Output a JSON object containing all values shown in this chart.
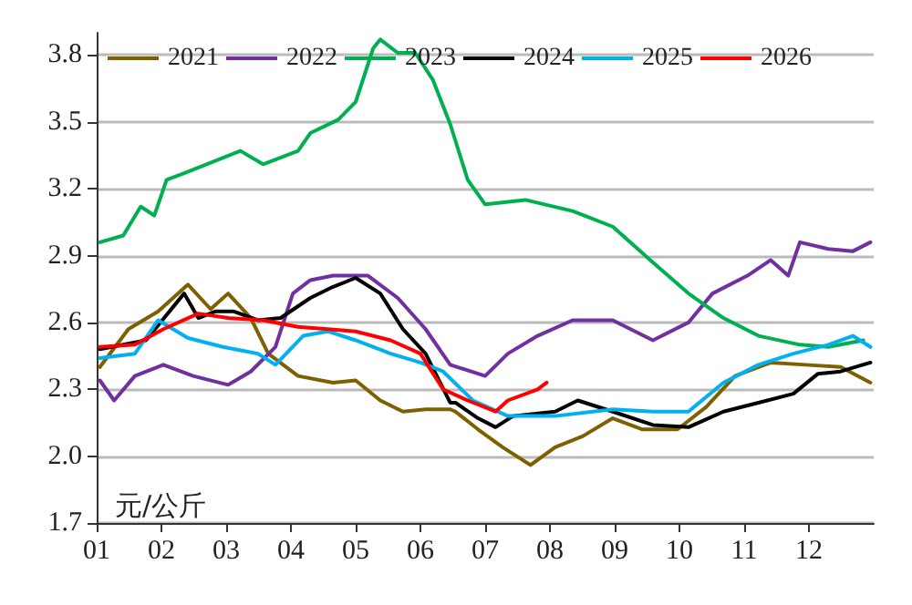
{
  "chart_data": {
    "type": "line",
    "ylabel": "元/公斤",
    "xlim": [
      1,
      13
    ],
    "xticks": [
      {
        "value": 1,
        "label": "01"
      },
      {
        "value": 2,
        "label": "02"
      },
      {
        "value": 3,
        "label": "03"
      },
      {
        "value": 4,
        "label": "04"
      },
      {
        "value": 5,
        "label": "05"
      },
      {
        "value": 6,
        "label": "06"
      },
      {
        "value": 7,
        "label": "07"
      },
      {
        "value": 8,
        "label": "08"
      },
      {
        "value": 9,
        "label": "09"
      },
      {
        "value": 10,
        "label": "10"
      },
      {
        "value": 11,
        "label": "11"
      },
      {
        "value": 12,
        "label": "12"
      }
    ],
    "ylim": [
      1.7,
      3.9
    ],
    "yticks": [
      {
        "value": 1.7,
        "label": "1.7"
      },
      {
        "value": 2.0,
        "label": "2.0"
      },
      {
        "value": 2.3,
        "label": "2.3"
      },
      {
        "value": 2.6,
        "label": "2.6"
      },
      {
        "value": 2.9,
        "label": "2.9"
      },
      {
        "value": 3.2,
        "label": "3.2"
      },
      {
        "value": 3.5,
        "label": "3.5"
      },
      {
        "value": 3.8,
        "label": "3.8"
      }
    ],
    "grid": "y",
    "legend": "top",
    "marker": "none",
    "line_style": "solid",
    "series": [
      {
        "name": "2021",
        "color": "#7f6000",
        "x": [
          1.05,
          1.49,
          1.95,
          2.41,
          2.76,
          3.03,
          3.38,
          3.65,
          4.11,
          4.65,
          5.0,
          5.38,
          5.73,
          6.08,
          6.46,
          6.54,
          6.89,
          7.27,
          7.7,
          8.08,
          8.51,
          8.97,
          9.43,
          9.97,
          10.41,
          10.86,
          11.41,
          11.95,
          12.49,
          12.95
        ],
        "values": [
          2.4,
          2.57,
          2.65,
          2.77,
          2.66,
          2.73,
          2.62,
          2.46,
          2.36,
          2.33,
          2.34,
          2.25,
          2.2,
          2.21,
          2.21,
          2.2,
          2.12,
          2.04,
          1.96,
          2.04,
          2.09,
          2.17,
          2.12,
          2.12,
          2.22,
          2.36,
          2.42,
          2.41,
          2.4,
          2.33
        ]
      },
      {
        "name": "2022",
        "color": "#7030a0",
        "x": [
          1.05,
          1.27,
          1.59,
          2.03,
          2.49,
          3.03,
          3.38,
          3.76,
          4.03,
          4.3,
          4.65,
          5.19,
          5.65,
          6.08,
          6.46,
          7.0,
          7.35,
          7.81,
          8.35,
          8.97,
          9.59,
          10.14,
          10.51,
          11.05,
          11.41,
          11.68,
          11.86,
          12.3,
          12.68,
          12.95
        ],
        "values": [
          2.34,
          2.25,
          2.36,
          2.41,
          2.36,
          2.32,
          2.38,
          2.49,
          2.73,
          2.79,
          2.81,
          2.81,
          2.71,
          2.57,
          2.41,
          2.36,
          2.46,
          2.54,
          2.61,
          2.61,
          2.52,
          2.6,
          2.73,
          2.81,
          2.88,
          2.81,
          2.96,
          2.93,
          2.92,
          2.96
        ]
      },
      {
        "name": "2023",
        "color": "#00b050",
        "x": [
          1.05,
          1.41,
          1.68,
          1.89,
          2.08,
          2.35,
          3.22,
          3.57,
          4.11,
          4.3,
          4.73,
          5.0,
          5.27,
          5.38,
          5.65,
          5.92,
          6.19,
          6.46,
          6.73,
          7.0,
          7.62,
          8.35,
          8.97,
          9.59,
          10.14,
          10.68,
          11.22,
          11.86,
          12.3,
          12.84
        ],
        "values": [
          2.96,
          2.99,
          3.12,
          3.08,
          3.24,
          3.27,
          3.37,
          3.31,
          3.37,
          3.45,
          3.51,
          3.59,
          3.83,
          3.87,
          3.81,
          3.81,
          3.69,
          3.49,
          3.24,
          3.13,
          3.15,
          3.1,
          3.03,
          2.87,
          2.73,
          2.62,
          2.54,
          2.5,
          2.49,
          2.52
        ]
      },
      {
        "name": "2024",
        "color": "#000000",
        "x": [
          1.05,
          1.76,
          2.35,
          2.57,
          2.84,
          3.11,
          3.49,
          3.84,
          4.3,
          4.65,
          5.0,
          5.38,
          5.73,
          6.08,
          6.46,
          6.54,
          6.89,
          7.16,
          7.43,
          8.08,
          8.43,
          8.97,
          9.59,
          10.14,
          10.68,
          11.22,
          11.76,
          12.14,
          12.49,
          12.95
        ],
        "values": [
          2.48,
          2.52,
          2.73,
          2.62,
          2.65,
          2.65,
          2.61,
          2.62,
          2.71,
          2.76,
          2.8,
          2.73,
          2.57,
          2.46,
          2.24,
          2.24,
          2.17,
          2.13,
          2.18,
          2.2,
          2.25,
          2.2,
          2.14,
          2.13,
          2.2,
          2.24,
          2.28,
          2.37,
          2.38,
          2.42
        ]
      },
      {
        "name": "2025",
        "color": "#00b0f0",
        "x": [
          1.05,
          1.59,
          1.95,
          2.41,
          2.95,
          3.49,
          3.76,
          4.19,
          4.57,
          5.0,
          5.54,
          6.0,
          6.35,
          6.81,
          7.35,
          8.08,
          8.97,
          9.59,
          10.14,
          10.68,
          11.22,
          11.76,
          12.3,
          12.68,
          12.95
        ],
        "values": [
          2.44,
          2.46,
          2.61,
          2.53,
          2.49,
          2.46,
          2.41,
          2.54,
          2.56,
          2.52,
          2.46,
          2.42,
          2.38,
          2.25,
          2.18,
          2.18,
          2.21,
          2.2,
          2.2,
          2.33,
          2.41,
          2.46,
          2.5,
          2.54,
          2.49
        ]
      },
      {
        "name": "2026",
        "color": "#ff0000",
        "x": [
          1.05,
          1.59,
          2.03,
          2.57,
          3.03,
          3.57,
          4.11,
          4.57,
          5.0,
          5.54,
          6.0,
          6.35,
          6.73,
          7.16,
          7.35,
          7.81,
          7.95
        ],
        "values": [
          2.49,
          2.5,
          2.57,
          2.64,
          2.62,
          2.61,
          2.58,
          2.57,
          2.56,
          2.52,
          2.46,
          2.3,
          2.25,
          2.2,
          2.25,
          2.3,
          2.33
        ]
      }
    ]
  }
}
